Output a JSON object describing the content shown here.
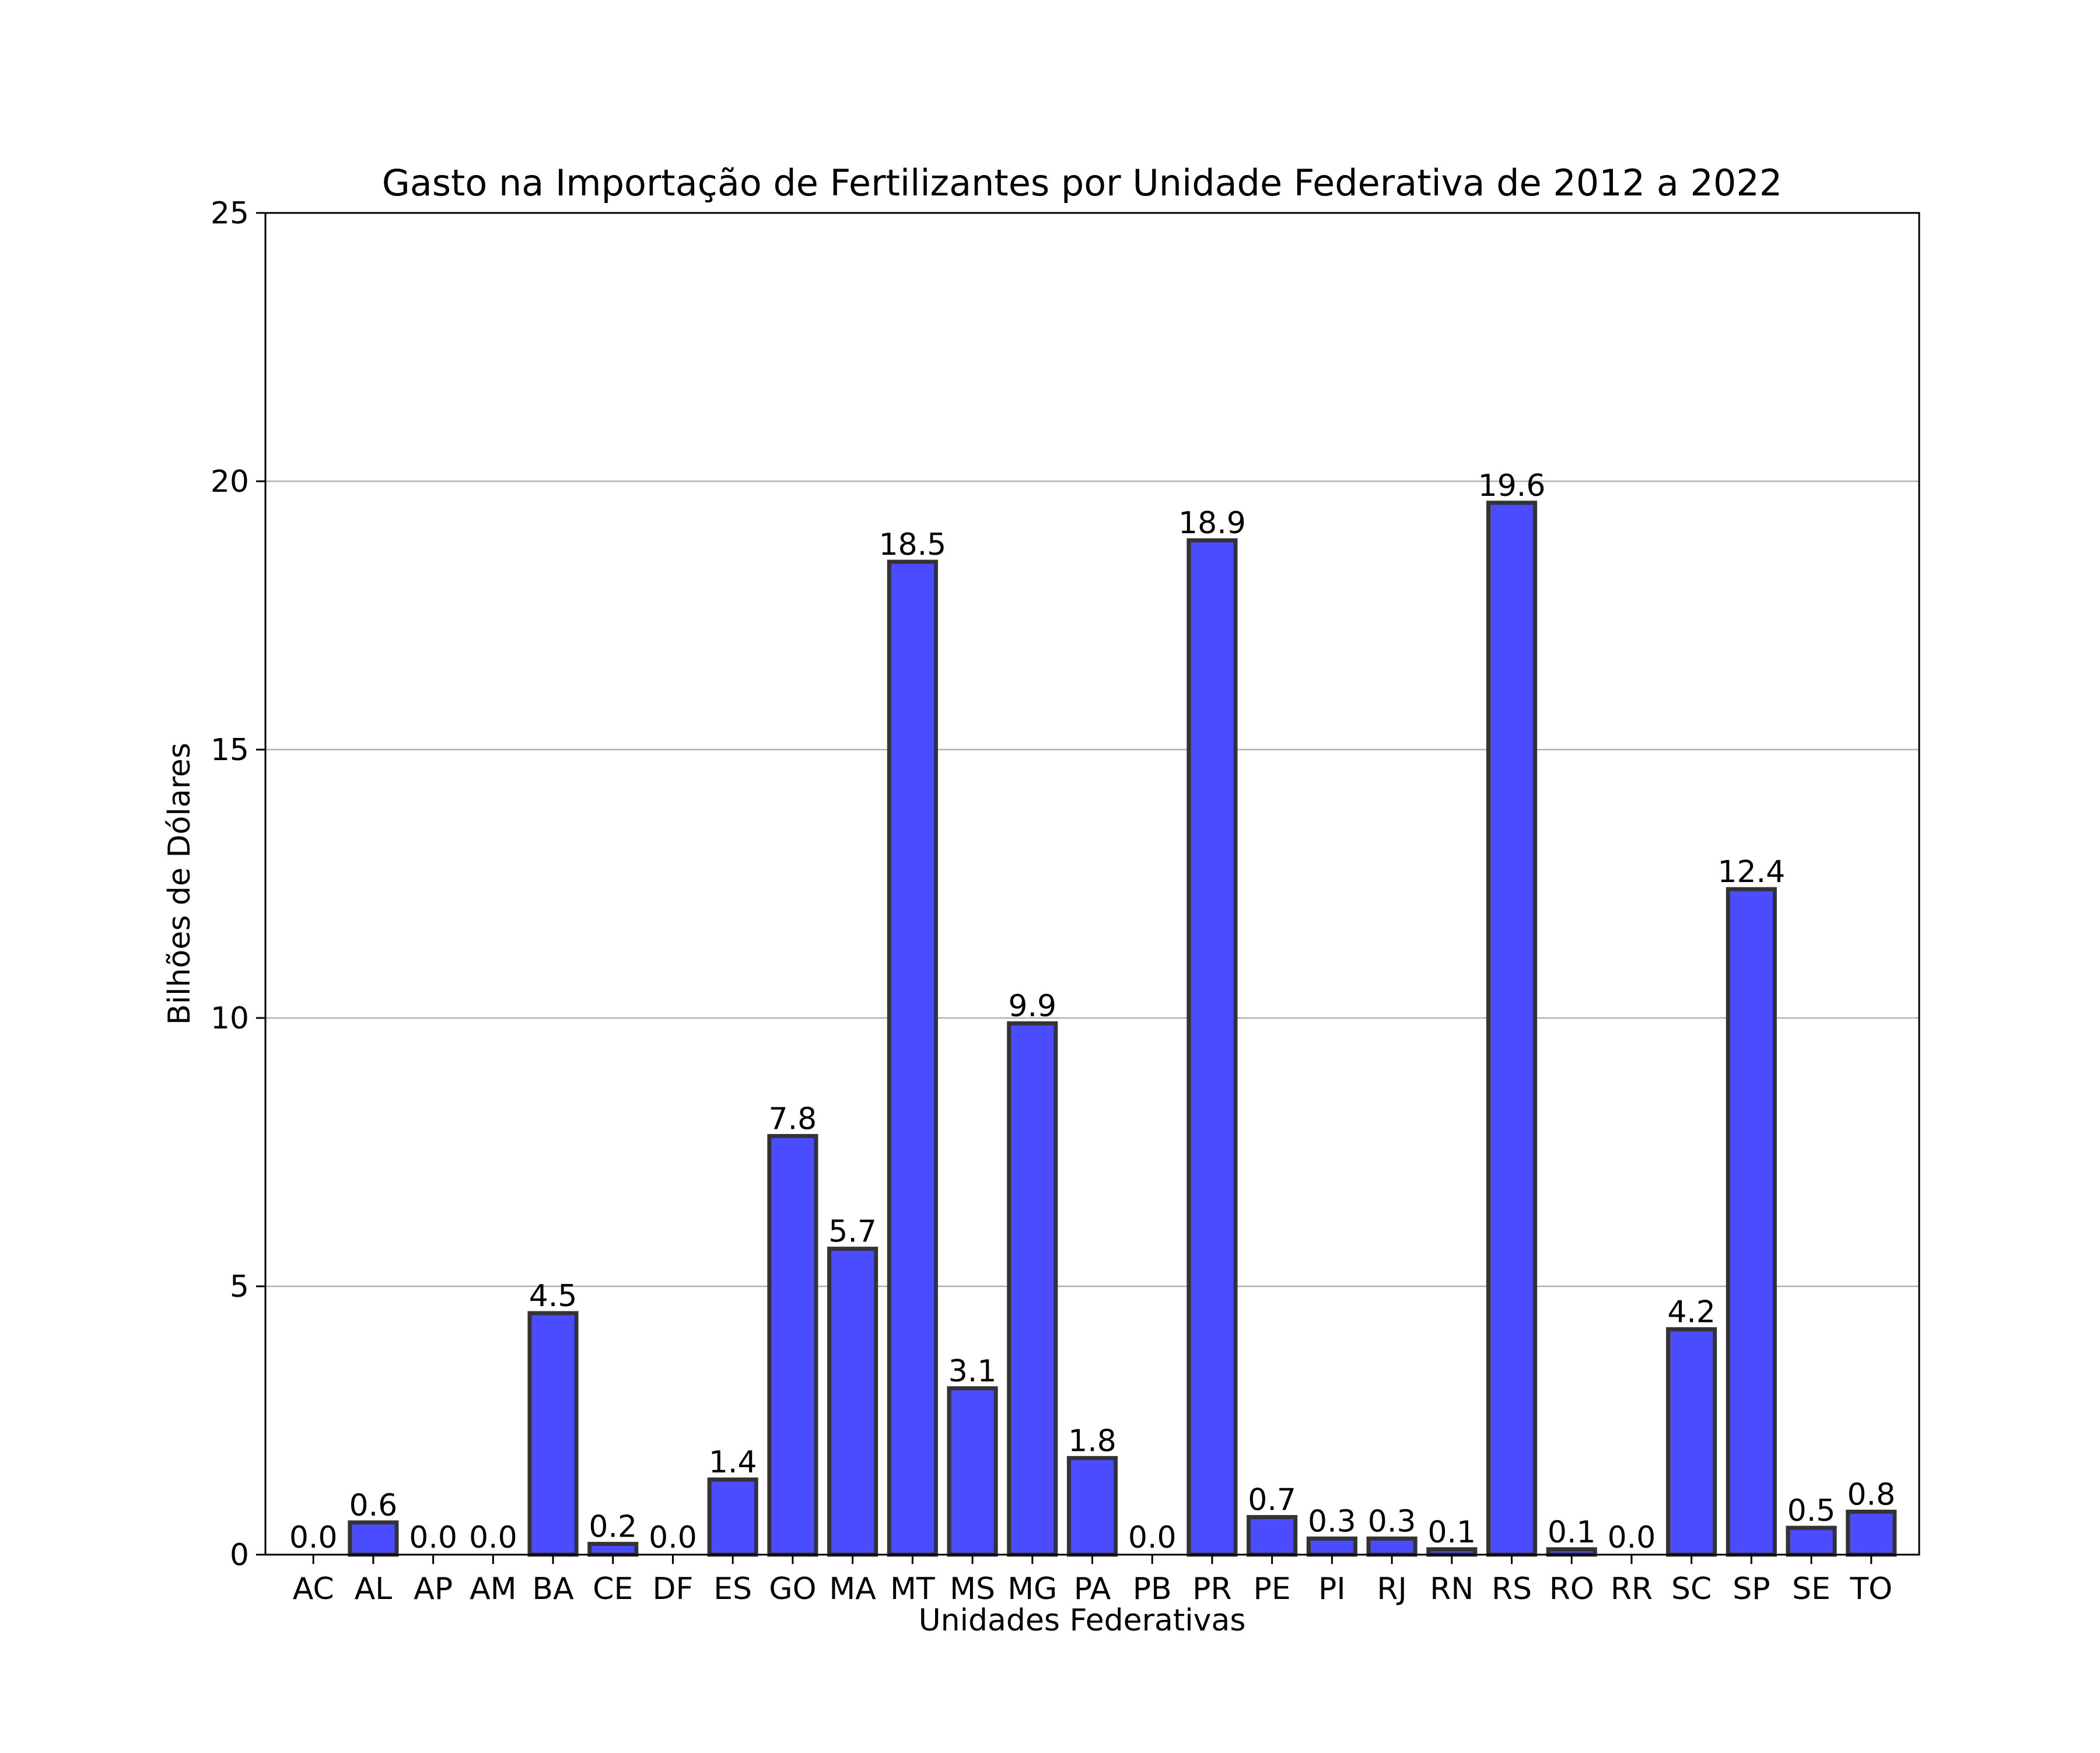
{
  "chart_data": {
    "type": "bar",
    "title": "Gasto na Importação de Fertilizantes por Unidade Federativa de 2012 a 2022",
    "xlabel": "Unidades Federativas",
    "ylabel": "Bilhões de Dólares",
    "ylim": [
      0,
      25
    ],
    "yticks": [
      0,
      5,
      10,
      15,
      20,
      25
    ],
    "ytick_labels": [
      "0",
      "5",
      "10",
      "15",
      "20",
      "25"
    ],
    "grid": "horizontal",
    "categories": [
      "AC",
      "AL",
      "AP",
      "AM",
      "BA",
      "CE",
      "DF",
      "ES",
      "GO",
      "MA",
      "MT",
      "MS",
      "MG",
      "PA",
      "PB",
      "PR",
      "PE",
      "PI",
      "RJ",
      "RN",
      "RS",
      "RO",
      "RR",
      "SC",
      "SP",
      "SE",
      "TO"
    ],
    "values": [
      0.0,
      0.6,
      0.0,
      0.0,
      4.5,
      0.2,
      0.0,
      1.4,
      7.8,
      5.7,
      18.5,
      3.1,
      9.9,
      1.8,
      0.0,
      18.9,
      0.7,
      0.3,
      0.3,
      0.1,
      19.6,
      0.1,
      0.0,
      4.2,
      12.4,
      0.5,
      0.8
    ],
    "data_labels": [
      "0.0",
      "0.6",
      "0.0",
      "0.0",
      "4.5",
      "0.2",
      "0.0",
      "1.4",
      "7.8",
      "5.7",
      "18.5",
      "3.1",
      "9.9",
      "1.8",
      "0.0",
      "18.9",
      "0.7",
      "0.3",
      "0.3",
      "0.1",
      "19.6",
      "0.1",
      "0.0",
      "4.2",
      "12.4",
      "0.5",
      "0.8"
    ],
    "bar_color": "#4b4bff",
    "bar_edge_color": "#333333",
    "grid_color": "#b0b0b0"
  }
}
